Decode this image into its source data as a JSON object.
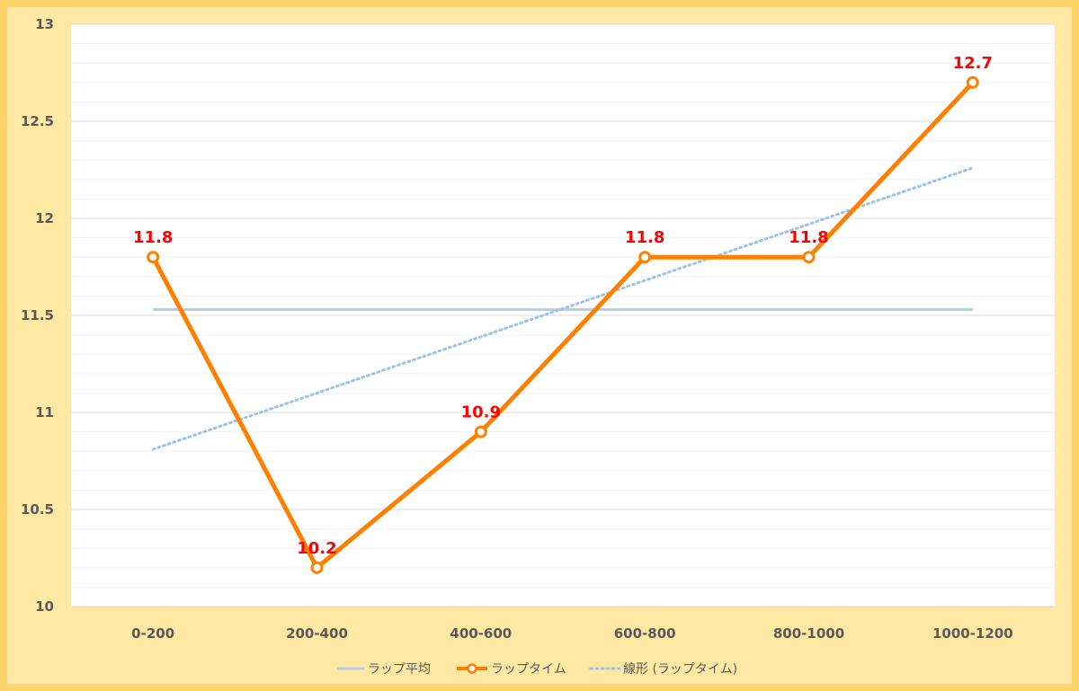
{
  "chart_data": {
    "type": "line",
    "categories": [
      "0-200",
      "200-400",
      "400-600",
      "600-800",
      "800-1000",
      "1000-1200"
    ],
    "ylim": [
      10,
      13
    ],
    "yticks": [
      "10",
      "10.5",
      "11",
      "11.5",
      "12",
      "12.5",
      "13"
    ],
    "grid": true,
    "legend_placement": "bottom",
    "series": [
      {
        "name": "ラップ平均",
        "style": "solid",
        "color": "#b4cfec",
        "values": [
          11.53,
          11.53,
          11.53,
          11.53,
          11.53,
          11.53
        ]
      },
      {
        "name": "ラップタイム",
        "style": "line-marker",
        "color": "#ff8000",
        "values": [
          11.8,
          10.2,
          10.9,
          11.8,
          11.8,
          12.7
        ],
        "data_labels": [
          "11.8",
          "10.2",
          "10.9",
          "11.8",
          "11.8",
          "12.7"
        ]
      },
      {
        "name": "線形 (ラップタイム)",
        "style": "dotted",
        "color": "#9dc3e6",
        "values": [
          10.81,
          11.1,
          11.39,
          11.68,
          11.97,
          12.26
        ]
      }
    ]
  }
}
